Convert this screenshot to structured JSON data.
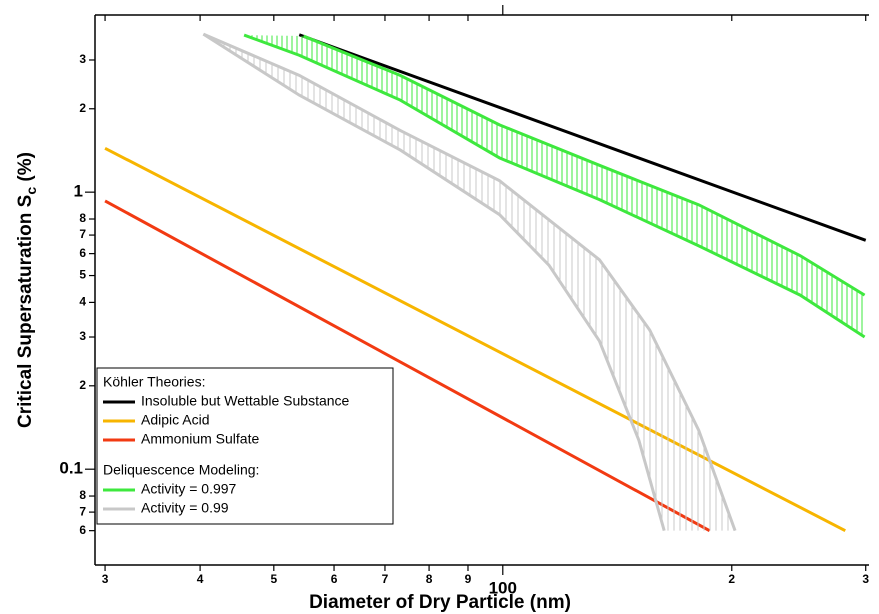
{
  "chart_data": {
    "type": "line",
    "xlabel": "Diameter of Dry Particle (nm)",
    "ylabel": {
      "text": "Critical Supersaturation S",
      "sub": "c",
      "tail": " (%)"
    },
    "log_x": true,
    "log_y": true,
    "xlim": [
      29.1,
      303
    ],
    "ylim": [
      0.0451,
      4.36
    ],
    "xticks": [
      {
        "value": 30,
        "label": "3"
      },
      {
        "value": 40,
        "label": "4"
      },
      {
        "value": 50,
        "label": "5"
      },
      {
        "value": 60,
        "label": "6"
      },
      {
        "value": 70,
        "label": "7"
      },
      {
        "value": 80,
        "label": "8"
      },
      {
        "value": 90,
        "label": "9"
      },
      100,
      {
        "value": 200,
        "label": "2"
      },
      {
        "value": 300,
        "label": "3"
      }
    ],
    "yticks": [
      {
        "value": 0.06,
        "label": "6"
      },
      {
        "value": 0.07,
        "label": "7"
      },
      {
        "value": 0.08,
        "label": "8"
      },
      0.1,
      {
        "value": 0.2,
        "label": "2"
      },
      {
        "value": 0.3,
        "label": "3"
      },
      {
        "value": 0.4,
        "label": "4"
      },
      {
        "value": 0.5,
        "label": "5"
      },
      {
        "value": 0.6,
        "label": "6"
      },
      {
        "value": 0.7,
        "label": "7"
      },
      {
        "value": 0.8,
        "label": "8"
      },
      1,
      {
        "value": 2,
        "label": "2"
      },
      {
        "value": 3,
        "label": "3"
      }
    ],
    "legend_titles": [
      "Köhler Theories:",
      "Deliquescence Modeling:"
    ],
    "legend_position": "lower left",
    "series": [
      {
        "name": "Insoluble but Wettable Substance",
        "color": "#000000",
        "x": [
          54,
          300
        ],
        "values": [
          3.7,
          0.67
        ]
      },
      {
        "name": "Adipic Acid",
        "color": "#f7b500",
        "x": [
          30,
          282
        ],
        "values": [
          1.44,
          0.06
        ]
      },
      {
        "name": "Ammonium Sulfate",
        "color": "#f23a12",
        "x": [
          30,
          187
        ],
        "values": [
          0.93,
          0.06
        ]
      },
      {
        "name": "Activity = 0.997",
        "color": "#3ee83e",
        "x": [
          54.7,
          73.3,
          99,
          134,
          181,
          246,
          299
        ],
        "values": [
          3.66,
          2.64,
          1.75,
          1.25,
          0.9,
          0.59,
          0.425
        ],
        "band": {
          "x": [
            45.7,
            54,
            73.3,
            99,
            134,
            181,
            246,
            299
          ],
          "values": [
            3.69,
            3.12,
            2.15,
            1.33,
            0.94,
            0.64,
            0.425,
            0.3
          ]
        }
      },
      {
        "name": "Activity = 0.99",
        "color": "#c8c8c8",
        "x": [
          40.4,
          54,
          73.3,
          99,
          134,
          156,
          181,
          202
        ],
        "values": [
          3.72,
          2.64,
          1.67,
          1.1,
          0.57,
          0.318,
          0.138,
          0.06
        ],
        "band": {
          "x": [
            40.4,
            54,
            73.3,
            99,
            115,
            134,
            151,
            163
          ],
          "values": [
            3.72,
            2.24,
            1.42,
            0.83,
            0.545,
            0.29,
            0.127,
            0.06
          ]
        }
      }
    ]
  }
}
